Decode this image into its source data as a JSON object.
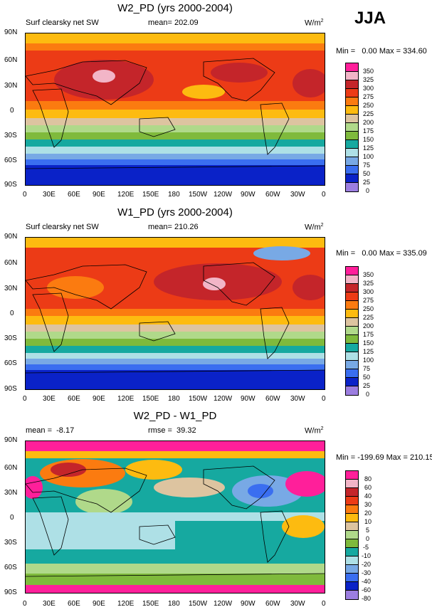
{
  "season": "JJA",
  "x_ticks": [
    "0",
    "30E",
    "60E",
    "90E",
    "120E",
    "150E",
    "180",
    "150W",
    "120W",
    "90W",
    "60W",
    "30W",
    "0"
  ],
  "y_ticks": [
    "90N",
    "60N",
    "30N",
    "0",
    "30S",
    "60S",
    "90S"
  ],
  "panels": [
    {
      "title": "W2_PD (yrs 2000-2004)",
      "left": "Surf clearsky net SW",
      "center": "mean= 202.09",
      "units": "W/m",
      "units_sup": "2",
      "minmax": "Min =   0.00 Max = 334.60",
      "legend_labels": [
        "350",
        "325",
        "300",
        "275",
        "250",
        "225",
        "200",
        "175",
        "150",
        "125",
        "100",
        "75",
        "50",
        "25",
        "0"
      ],
      "legend_colors": [
        "#ff1f9a",
        "#f2b5c7",
        "#c4252a",
        "#ec3b16",
        "#fb7b10",
        "#fdbb10",
        "#ddc4a0",
        "#b0d98a",
        "#7fba3c",
        "#16a9a0",
        "#aee0e6",
        "#78a9e5",
        "#3a6ef0",
        "#0a22c8",
        "#9c7ee0"
      ]
    },
    {
      "title": "W1_PD (yrs 2000-2004)",
      "left": "Surf clearsky net SW",
      "center": "mean= 210.26",
      "units": "W/m",
      "units_sup": "2",
      "minmax": "Min =   0.00 Max = 335.09",
      "legend_labels": [
        "350",
        "325",
        "300",
        "275",
        "250",
        "225",
        "200",
        "175",
        "150",
        "125",
        "100",
        "75",
        "50",
        "25",
        "0"
      ],
      "legend_colors": [
        "#ff1f9a",
        "#f2b5c7",
        "#c4252a",
        "#ec3b16",
        "#fb7b10",
        "#fdbb10",
        "#ddc4a0",
        "#b0d98a",
        "#7fba3c",
        "#16a9a0",
        "#aee0e6",
        "#78a9e5",
        "#3a6ef0",
        "#0a22c8",
        "#9c7ee0"
      ]
    },
    {
      "title": "W2_PD - W1_PD",
      "left": "mean =  -8.17",
      "center": "rmse =  39.32",
      "units": "W/m",
      "units_sup": "2",
      "minmax": "Min = -199.69 Max = 210.15",
      "legend_labels": [
        "80",
        "60",
        "40",
        "30",
        "20",
        "10",
        "5",
        "0",
        "-5",
        "-10",
        "-20",
        "-30",
        "-40",
        "-60",
        "-80"
      ],
      "legend_colors": [
        "#ff1f9a",
        "#f2b5c7",
        "#c4252a",
        "#ec3b16",
        "#fb7b10",
        "#fdbb10",
        "#ddc4a0",
        "#b0d98a",
        "#7fba3c",
        "#16a9a0",
        "#aee0e6",
        "#78a9e5",
        "#3a6ef0",
        "#0a22c8",
        "#9c7ee0"
      ]
    }
  ]
}
